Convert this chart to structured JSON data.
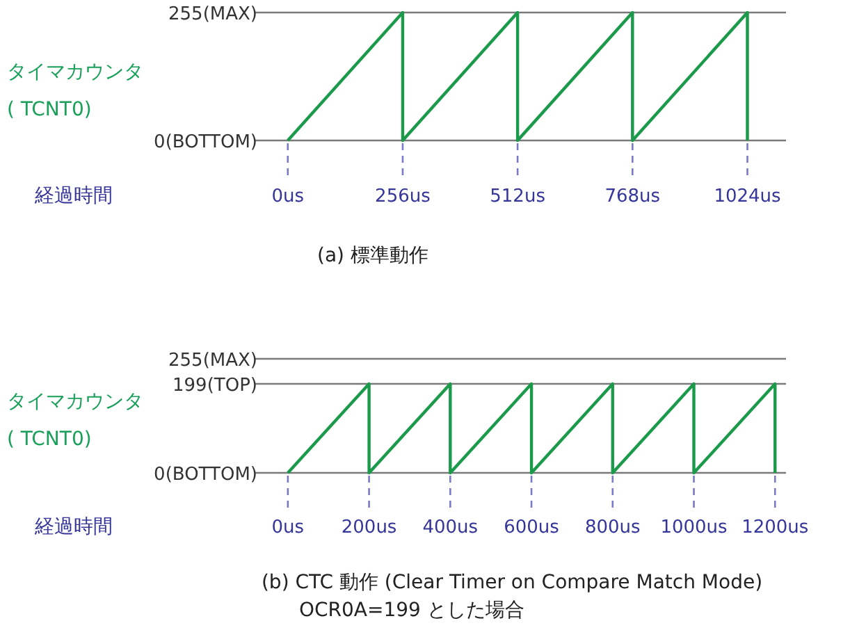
{
  "chart_data": [
    {
      "type": "line",
      "title": "(a) 標準動作",
      "xlabel": "経過時間",
      "ylabel": "タイマカウンタ\n( TCNT0)",
      "marker": "none",
      "line_style": "solid",
      "xlim": [
        -74,
        1110
      ],
      "ylim": [
        0,
        255
      ],
      "xticks": [
        {
          "value": 0,
          "label": "0us"
        },
        {
          "value": 256,
          "label": "256us"
        },
        {
          "value": 512,
          "label": "512us"
        },
        {
          "value": 768,
          "label": "768us"
        },
        {
          "value": 1024,
          "label": "1024us"
        }
      ],
      "yticks": [
        {
          "value": 0,
          "label": "0(BOTTOM)"
        },
        {
          "value": 255,
          "label": "255(MAX)"
        }
      ],
      "series": [
        {
          "color": "#1a9a4a",
          "x": [
            0,
            256,
            256,
            512,
            512,
            768,
            768,
            1024,
            1024
          ],
          "values": [
            0,
            255,
            0,
            255,
            0,
            255,
            0,
            255,
            0
          ]
        }
      ]
    },
    {
      "type": "line",
      "title": "(b) CTC 動作 (Clear Timer on Compare Match Mode)",
      "subtitle": "OCR0A=199 とした場合",
      "xlabel": "経過時間",
      "ylabel": "タイマカウンタ\n( TCNT0)",
      "grid": "y",
      "marker": "none",
      "line_style": "solid",
      "xlim": [
        -82,
        1227
      ],
      "ylim": [
        0,
        255
      ],
      "xticks": [
        {
          "value": 0,
          "label": "0us"
        },
        {
          "value": 200,
          "label": "200us"
        },
        {
          "value": 400,
          "label": "400us"
        },
        {
          "value": 600,
          "label": "600us"
        },
        {
          "value": 800,
          "label": "800us"
        },
        {
          "value": 1000,
          "label": "1000us"
        },
        {
          "value": 1200,
          "label": "1200us"
        }
      ],
      "yticks": [
        {
          "value": 0,
          "label": "0(BOTTOM)"
        },
        {
          "value": 199,
          "label": "199(TOP)"
        },
        {
          "value": 255,
          "label": "255(MAX)"
        }
      ],
      "series": [
        {
          "color": "#1a9a4a",
          "x": [
            0,
            200,
            200,
            400,
            400,
            600,
            600,
            800,
            800,
            1000,
            1000,
            1200,
            1200
          ],
          "values": [
            0,
            199,
            0,
            199,
            0,
            199,
            0,
            199,
            0,
            199,
            0,
            199,
            0
          ]
        }
      ]
    }
  ]
}
